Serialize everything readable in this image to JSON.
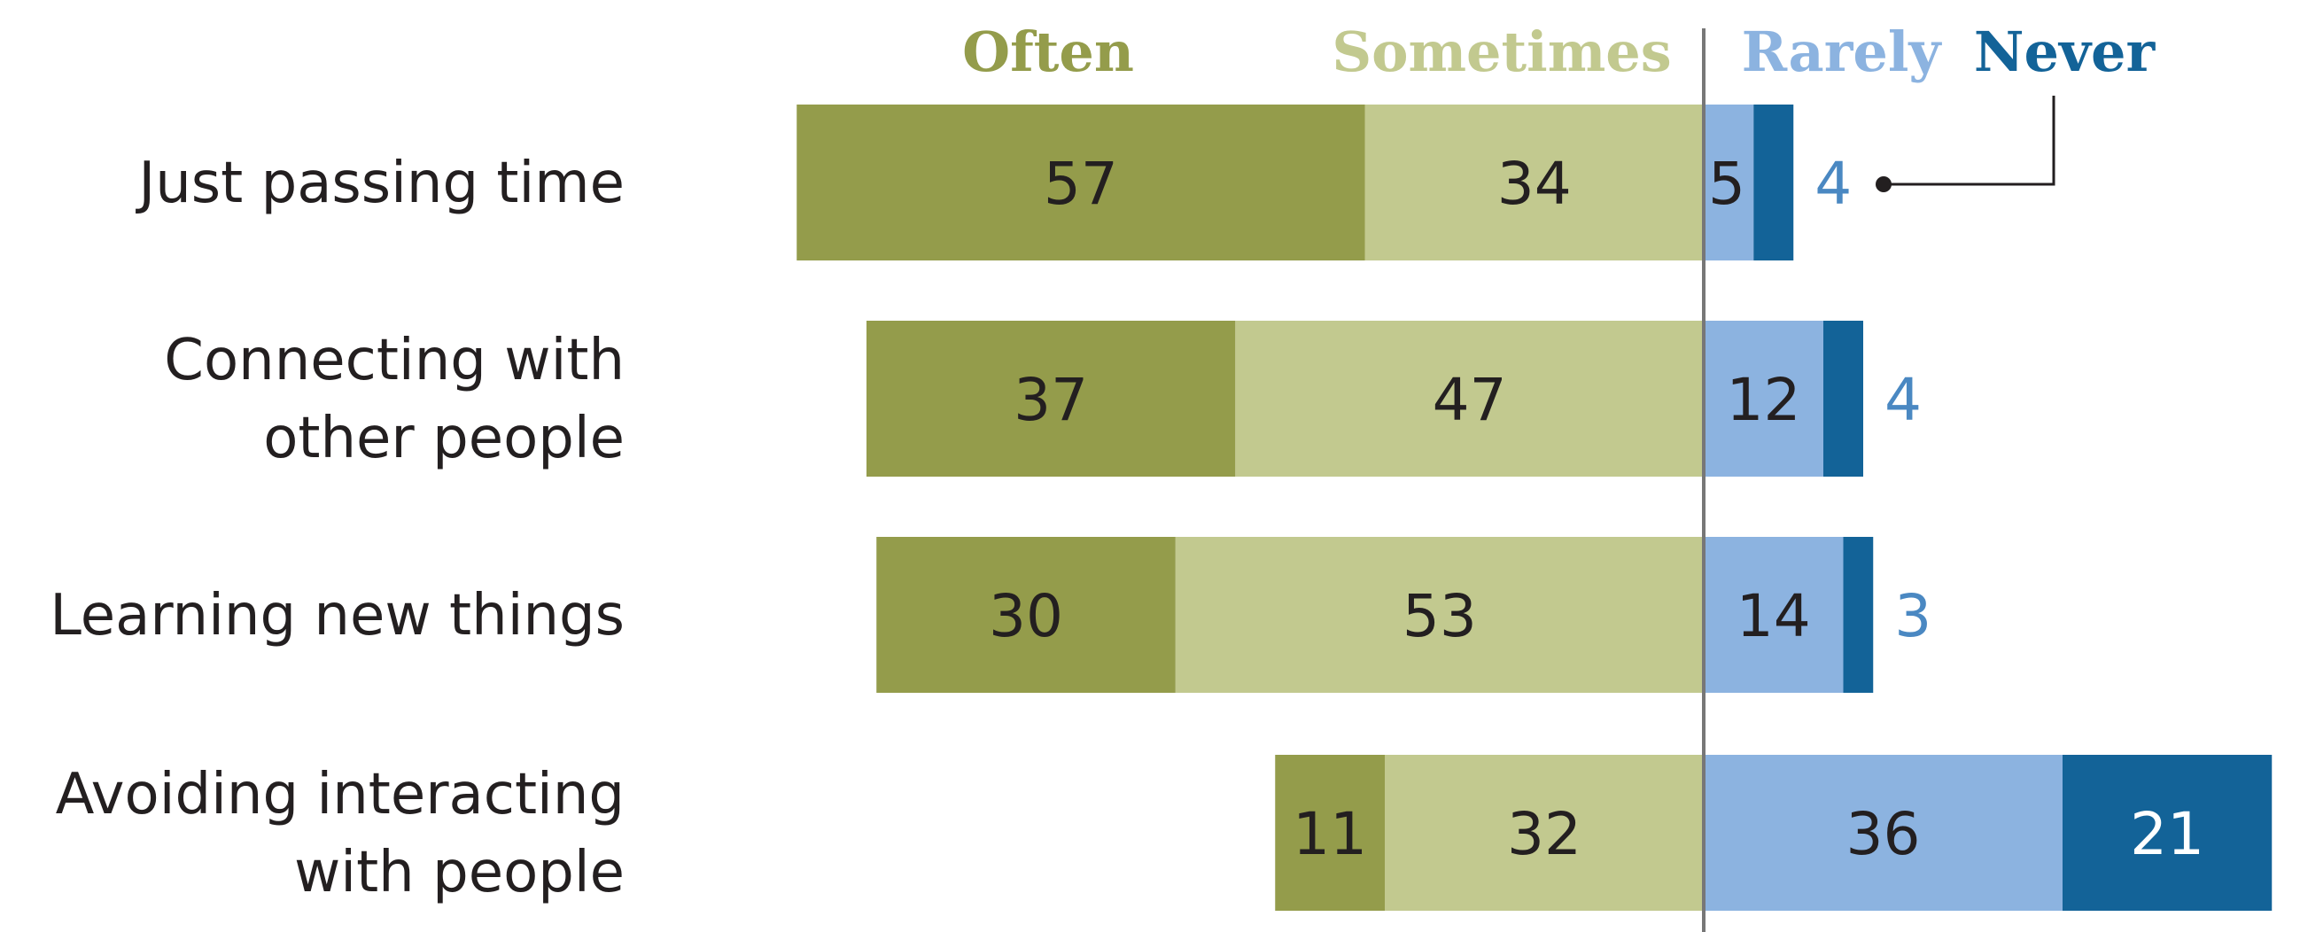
{
  "chart_data": {
    "type": "bar",
    "orientation": "horizontal-diverging",
    "title": "",
    "xlabel": "",
    "ylabel": "",
    "categories": [
      [
        "Just passing time"
      ],
      [
        "Connecting with",
        "other people"
      ],
      [
        "Learning new things"
      ],
      [
        "Avoiding interacting",
        "with people"
      ]
    ],
    "series": [
      {
        "name": "Often",
        "side": "left",
        "color": "#949c4b",
        "text_color": "#949c4b",
        "values": [
          57,
          37,
          30,
          11
        ]
      },
      {
        "name": "Sometimes",
        "side": "left",
        "color": "#c2c98f",
        "text_color": "#c2c98f",
        "values": [
          34,
          47,
          53,
          32
        ]
      },
      {
        "name": "Rarely",
        "side": "right",
        "color": "#8cb3e0",
        "text_color": "#8cb3e0",
        "values": [
          5,
          12,
          14,
          36
        ]
      },
      {
        "name": "Never",
        "side": "right",
        "color": "#136398",
        "text_color": "#136398",
        "values": [
          4,
          4,
          3,
          21
        ]
      }
    ],
    "outside_label_color": "#4a88c2",
    "legend_placement": "top",
    "grid": false
  }
}
